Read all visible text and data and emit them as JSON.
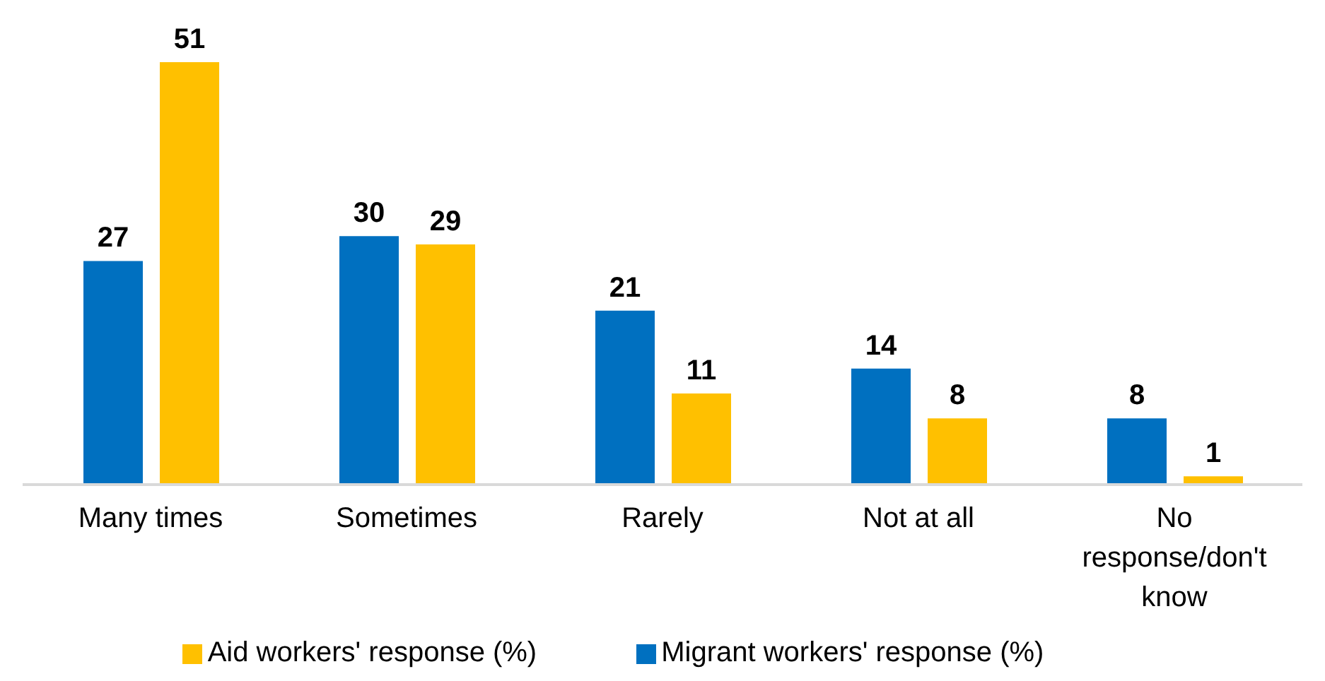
{
  "chart_data": {
    "type": "bar",
    "categories": [
      "Many times",
      "Sometimes",
      "Rarely",
      "Not at all",
      "No response/don't know"
    ],
    "series": [
      {
        "name": "Migrant workers' response (%)",
        "color": "#0070c0",
        "values": [
          27,
          30,
          21,
          14,
          8
        ]
      },
      {
        "name": "Aid workers' response (%)",
        "color": "#ffc000",
        "values": [
          51,
          29,
          11,
          8,
          1
        ]
      }
    ],
    "data_labels": true,
    "legend": "bottom",
    "grid": false
  }
}
